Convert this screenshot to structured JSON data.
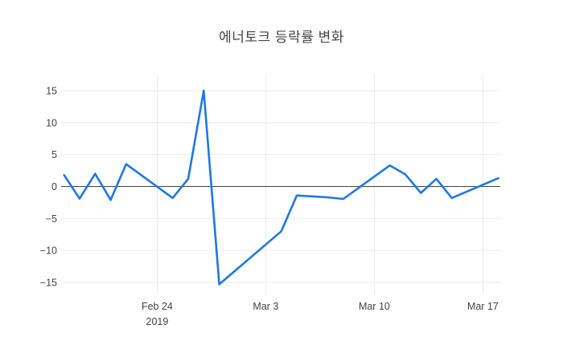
{
  "chart_data": {
    "type": "line",
    "title": "에너토크 등락률 변화",
    "series_name": "등락률",
    "x": [
      "2019-02-18",
      "2019-02-19",
      "2019-02-20",
      "2019-02-21",
      "2019-02-22",
      "2019-02-25",
      "2019-02-26",
      "2019-02-27",
      "2019-02-28",
      "2019-03-04",
      "2019-03-05",
      "2019-03-06",
      "2019-03-07",
      "2019-03-08",
      "2019-03-11",
      "2019-03-12",
      "2019-03-13",
      "2019-03-14",
      "2019-03-15",
      "2019-03-18"
    ],
    "y": [
      1.8,
      -1.9,
      2.0,
      -2.1,
      3.5,
      -1.8,
      1.2,
      15.0,
      -15.3,
      -7.0,
      -1.4,
      -1.55,
      -1.7,
      -1.95,
      3.3,
      1.9,
      -1.0,
      1.2,
      -1.8,
      1.3
    ],
    "xlabel": "",
    "ylabel": "",
    "ylim": [
      -17.2,
      17.5
    ],
    "xlim": [
      "2019-02-17",
      "2019-03-18"
    ],
    "grid": true,
    "legend_position": "none",
    "zeroline": true,
    "yticks": [
      {
        "value": 15,
        "label": "15"
      },
      {
        "value": 10,
        "label": "10"
      },
      {
        "value": 5,
        "label": "5"
      },
      {
        "value": 0,
        "label": "0"
      },
      {
        "value": -5,
        "label": "−5"
      },
      {
        "value": -10,
        "label": "−10"
      },
      {
        "value": -15,
        "label": "−15"
      }
    ],
    "xticks": [
      {
        "date": "2019-02-24",
        "label": "Feb 24",
        "sublabel": "2019"
      },
      {
        "date": "2019-03-03",
        "label": "Mar 3",
        "sublabel": ""
      },
      {
        "date": "2019-03-10",
        "label": "Mar 10",
        "sublabel": ""
      },
      {
        "date": "2019-03-17",
        "label": "Mar 17",
        "sublabel": ""
      }
    ],
    "colors": {
      "line": "#1e78e2",
      "grid": "#ebebeb",
      "zeroline": "#444444",
      "tick_text": "#444444",
      "title_text": "#444444",
      "background": "#ffffff"
    }
  }
}
